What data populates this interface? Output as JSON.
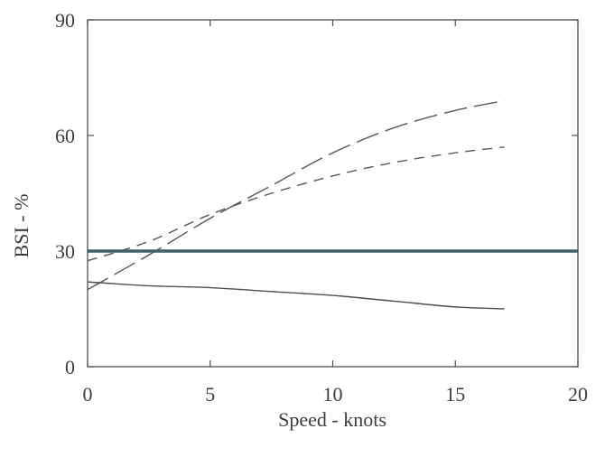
{
  "chart_data": {
    "type": "line",
    "title": "",
    "xlabel": "Speed - knots",
    "ylabel": "BSI - %",
    "xlim": [
      0,
      20
    ],
    "ylim": [
      0,
      90
    ],
    "xticks": [
      0,
      5,
      10,
      15,
      20
    ],
    "yticks": [
      0,
      30,
      60,
      90
    ],
    "xtick_labels": [
      "0",
      "5",
      "10",
      "15",
      "20"
    ],
    "ytick_labels": [
      "0",
      "30",
      "60",
      "90"
    ],
    "grid": false,
    "legend": "none",
    "series": [
      {
        "style": "long-dash",
        "color": "#55585d",
        "x": [
          0,
          2.5,
          5,
          7.5,
          10,
          12.5,
          15,
          17
        ],
        "y": [
          20,
          29,
          38.5,
          47,
          55.5,
          62,
          66.5,
          69
        ]
      },
      {
        "style": "short-dash",
        "color": "#55585d",
        "x": [
          0,
          2.5,
          5,
          7.5,
          10,
          12.5,
          15,
          17
        ],
        "y": [
          27.5,
          32.5,
          39.5,
          45,
          49.5,
          53,
          55.5,
          57
        ]
      },
      {
        "style": "solid",
        "color": "#4a4d52",
        "x": [
          0,
          2.5,
          5,
          7.5,
          10,
          12.5,
          15,
          17
        ],
        "y": [
          22,
          21,
          20.5,
          19.5,
          18.5,
          17,
          15.5,
          15
        ]
      },
      {
        "style": "thick-solid",
        "color": "#3e5f68",
        "x": [
          0,
          20
        ],
        "y": [
          30,
          30
        ]
      }
    ]
  }
}
